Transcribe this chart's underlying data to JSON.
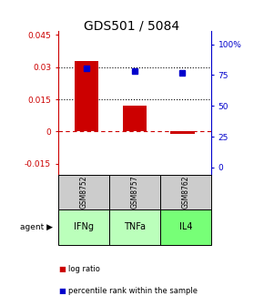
{
  "title": "GDS501 / 5084",
  "samples": [
    "GSM8752",
    "GSM8757",
    "GSM8762"
  ],
  "agents": [
    "IFNg",
    "TNFa",
    "IL4"
  ],
  "log_ratios": [
    0.033,
    0.012,
    -0.001
  ],
  "percentile_ranks": [
    80.5,
    78.0,
    76.5
  ],
  "bar_color": "#cc0000",
  "dot_color": "#0000cc",
  "left_ylim": [
    -0.02,
    0.047
  ],
  "right_ylim": [
    -5.56,
    111.1
  ],
  "left_yticks": [
    -0.015,
    0,
    0.015,
    0.03,
    0.045
  ],
  "right_yticks": [
    0,
    25,
    50,
    75,
    100
  ],
  "right_tick_labels": [
    "0",
    "25",
    "50",
    "75",
    "100%"
  ],
  "hline_y": [
    0.015,
    0.03
  ],
  "zero_line_y": 0.0,
  "agent_colors": [
    "#bbffbb",
    "#bbffbb",
    "#77ff77"
  ],
  "cell_bg": "#cccccc",
  "title_fontsize": 10,
  "legend_fontsize": 6.5,
  "bar_width": 0.5
}
